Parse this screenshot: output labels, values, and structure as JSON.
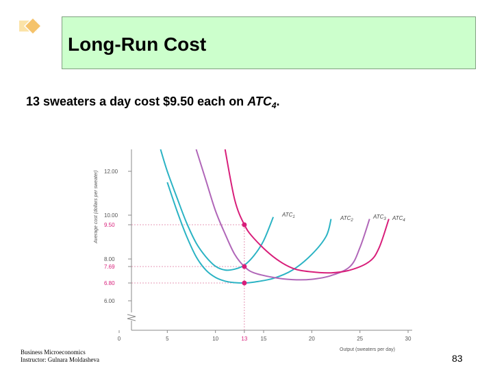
{
  "slide": {
    "title": "Long-Run Cost",
    "caption": {
      "prefix": "13 sweaters a day cost $9.50 each on ",
      "atc": "ATC",
      "atc_sub": "4",
      "suffix": "."
    },
    "footer_line1": "Business Microeconomics",
    "footer_line2": "Instructor: Gulnara Moldasheva",
    "page_number": "83"
  },
  "colors": {
    "title_bg": "#ccffcc",
    "diamond": "#f5c36b",
    "atc1": "#2bb3c4",
    "atc2": "#2bb3c4",
    "atc3": "#b066b8",
    "atc4": "#d81e7a",
    "ref_line": "#e07aa0"
  },
  "chart_data": {
    "type": "line",
    "ylabel": "Average cost (dollars per sweater)",
    "xlabel": "Output (sweaters per day)",
    "x_ticks": [
      "0",
      "5",
      "10",
      "13",
      "15",
      "20",
      "25",
      "30"
    ],
    "x_tick_values": [
      0,
      5,
      10,
      13,
      15,
      20,
      25,
      30
    ],
    "y_ticks": [
      "12.00",
      "10.00",
      "9.50",
      "8.00",
      "7.69",
      "6.80",
      "6.00"
    ],
    "y_tick_values": [
      12,
      10,
      9.5,
      8,
      7.69,
      6.8,
      6
    ],
    "y_pink_ticks": [
      "9.50",
      "7.69",
      "6.80"
    ],
    "axis_break": true,
    "series": [
      {
        "name": "ATC",
        "sub": "1",
        "points": [
          [
            4.3,
            13
          ],
          [
            5,
            12.0
          ],
          [
            6,
            10.8
          ],
          [
            7,
            9.6
          ],
          [
            8,
            8.7
          ],
          [
            9,
            8.1
          ],
          [
            10,
            7.7
          ],
          [
            11,
            7.5
          ],
          [
            12,
            7.55
          ],
          [
            13,
            7.75
          ],
          [
            14,
            8.15
          ],
          [
            15,
            8.8
          ],
          [
            16,
            9.9
          ]
        ]
      },
      {
        "name": "ATC",
        "sub": "2",
        "points": [
          [
            5,
            11.5
          ],
          [
            6,
            10.2
          ],
          [
            7,
            9.0
          ],
          [
            8,
            8.1
          ],
          [
            9,
            7.5
          ],
          [
            10,
            7.1
          ],
          [
            11,
            6.9
          ],
          [
            12,
            6.82
          ],
          [
            13,
            6.8
          ],
          [
            14,
            6.85
          ],
          [
            16,
            7.05
          ],
          [
            18,
            7.5
          ],
          [
            20,
            8.2
          ],
          [
            21.5,
            9.0
          ],
          [
            22,
            9.8
          ]
        ]
      },
      {
        "name": "ATC",
        "sub": "3",
        "points": [
          [
            8,
            13
          ],
          [
            9,
            11.6
          ],
          [
            10,
            10.2
          ],
          [
            11,
            9.1
          ],
          [
            12,
            8.2
          ],
          [
            13,
            7.69
          ],
          [
            14,
            7.35
          ],
          [
            16,
            7.1
          ],
          [
            18,
            6.98
          ],
          [
            20,
            7.0
          ],
          [
            22,
            7.2
          ],
          [
            24,
            7.7
          ],
          [
            25,
            8.5
          ],
          [
            26,
            9.8
          ]
        ]
      },
      {
        "name": "ATC",
        "sub": "4",
        "points": [
          [
            11,
            13
          ],
          [
            12,
            10.7
          ],
          [
            13,
            9.5
          ],
          [
            14,
            8.9
          ],
          [
            16,
            8.1
          ],
          [
            18,
            7.6
          ],
          [
            20,
            7.4
          ],
          [
            22,
            7.35
          ],
          [
            24,
            7.5
          ],
          [
            26,
            7.9
          ],
          [
            27,
            8.5
          ],
          [
            28,
            9.8
          ]
        ]
      }
    ],
    "highlight_points": [
      {
        "x": 13,
        "y": 9.5
      },
      {
        "x": 13,
        "y": 7.69
      },
      {
        "x": 13,
        "y": 6.8
      }
    ],
    "grid": false
  }
}
